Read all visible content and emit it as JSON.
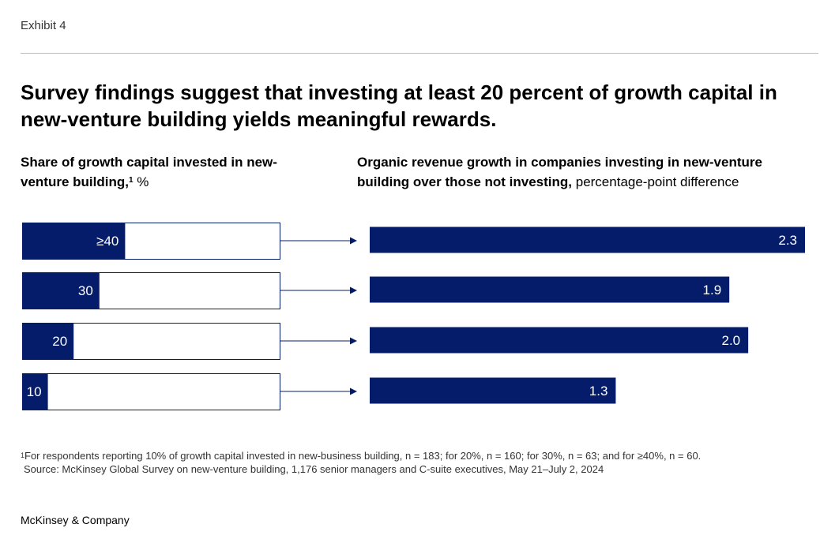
{
  "exhibit_label": "Exhibit 4",
  "title": "Survey findings suggest that investing at least 20 percent of growth capital in new-venture building yields meaningful rewards.",
  "left_subtitle": {
    "bold": "Share of growth capital invested in new-venture building,",
    "sup": "1",
    "unit": " %"
  },
  "right_subtitle": {
    "bold": "Organic revenue growth in companies investing in new-venture building over those not investing,",
    "unit": " percentage-point difference"
  },
  "colors": {
    "bar": "#051c6b",
    "box_border": "#051c6b",
    "arrow": "#051c6b",
    "bar_label": "#ffffff"
  },
  "chart_data": [
    {
      "type": "bar",
      "orientation": "horizontal",
      "title": "Share of growth capital invested in new-venture building, %",
      "categories": [
        "≥40",
        "30",
        "20",
        "10"
      ],
      "values": [
        40,
        30,
        20,
        10
      ],
      "xlim": [
        0,
        100
      ]
    },
    {
      "type": "bar",
      "orientation": "horizontal",
      "title": "Organic revenue growth in companies investing in new-venture building over those not investing, percentage-point difference",
      "categories": [
        "≥40",
        "30",
        "20",
        "10"
      ],
      "values": [
        2.3,
        1.9,
        2.0,
        1.3
      ],
      "value_labels": [
        "2.3",
        "1.9",
        "2.0",
        "1.3"
      ],
      "xlim": [
        0,
        2.3
      ]
    }
  ],
  "footnote": {
    "sup": "1",
    "text": "For respondents reporting 10% of growth capital invested in new-business building, n = 183; for 20%, n = 160; for 30%, n = 63; and for ≥40%, n = 60.",
    "source": "Source: McKinsey Global Survey on new-venture building, 1,176 senior managers and C-suite executives, May 21–July 2, 2024"
  },
  "brand": "McKinsey & Company"
}
